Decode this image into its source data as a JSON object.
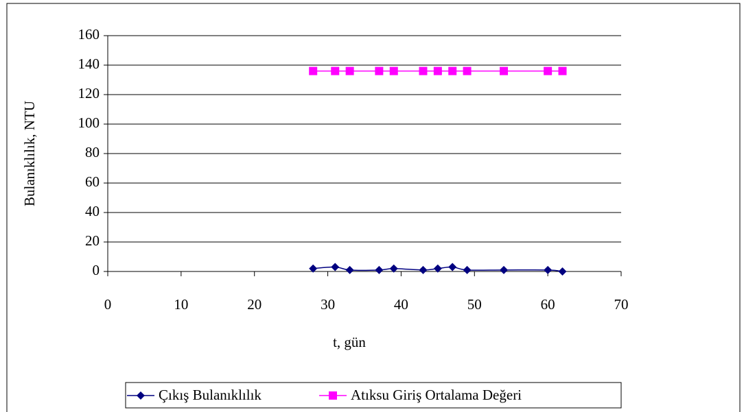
{
  "chart_data": {
    "type": "line",
    "x_label": "t, gün",
    "y_label": "Bulanıklılık, NTU",
    "xlim": [
      0,
      70
    ],
    "xticks": [
      0,
      10,
      20,
      30,
      40,
      50,
      60,
      70
    ],
    "ylim": [
      0,
      160
    ],
    "yticks": [
      0,
      20,
      40,
      60,
      80,
      100,
      120,
      140,
      160
    ],
    "grid": true,
    "legend": "bottom",
    "series": [
      {
        "name": "Çıkış Bulanıklılık",
        "color": "#000080",
        "marker": "diamond",
        "smooth": true,
        "x": [
          28,
          31,
          33,
          37,
          39,
          43,
          45,
          47,
          49,
          54,
          60,
          62
        ],
        "values": [
          2,
          3,
          1,
          1,
          2,
          1,
          2,
          3,
          1,
          1,
          1,
          0
        ]
      },
      {
        "name": "Atıksu Giriş Ortalama Değeri",
        "color": "#ff00ff",
        "marker": "square",
        "smooth": false,
        "x": [
          28,
          31,
          33,
          37,
          39,
          43,
          45,
          47,
          49,
          54,
          60,
          62
        ],
        "values": [
          136,
          136,
          136,
          136,
          136,
          136,
          136,
          136,
          136,
          136,
          136,
          136
        ]
      }
    ]
  }
}
